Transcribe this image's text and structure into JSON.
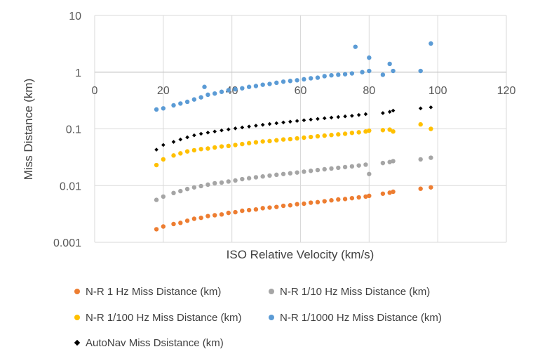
{
  "chart_data": {
    "type": "scatter",
    "title": "",
    "xlabel": "ISO Relative Velocity (km/s)",
    "ylabel": "Miss Distance (km)",
    "xlim": [
      0,
      120
    ],
    "ylim": [
      0.001,
      10
    ],
    "yscale": "log",
    "x_ticks": [
      "0",
      "20",
      "40",
      "60",
      "80",
      "100",
      "120"
    ],
    "y_ticks": [
      "0.001",
      "0.01",
      "0.1",
      "1",
      "10"
    ],
    "grid": true,
    "legend_position": "bottom",
    "series": [
      {
        "name": "N-R 1 Hz Miss Distance (km)",
        "color": "#ED7D31",
        "marker": "circle",
        "x": [
          18,
          20,
          23,
          25,
          27,
          29,
          31,
          33,
          35,
          37,
          39,
          41,
          43,
          45,
          47,
          49,
          51,
          53,
          55,
          57,
          59,
          61,
          63,
          65,
          67,
          69,
          71,
          73,
          75,
          77,
          79,
          80,
          84,
          86,
          87,
          95,
          98
        ],
        "y": [
          0.0017,
          0.0019,
          0.0021,
          0.0022,
          0.0024,
          0.0026,
          0.0027,
          0.0029,
          0.003,
          0.0031,
          0.0033,
          0.0034,
          0.0036,
          0.0037,
          0.0038,
          0.004,
          0.0041,
          0.0042,
          0.0044,
          0.0045,
          0.0047,
          0.0048,
          0.005,
          0.0051,
          0.0053,
          0.0055,
          0.0057,
          0.0058,
          0.006,
          0.0062,
          0.0064,
          0.0066,
          0.0072,
          0.0075,
          0.0078,
          0.0088,
          0.0093
        ]
      },
      {
        "name": "N-R 1/10 Hz Miss Distance (km)",
        "color": "#A5A5A5",
        "marker": "circle",
        "x": [
          18,
          20,
          23,
          25,
          27,
          29,
          31,
          33,
          35,
          37,
          39,
          41,
          43,
          45,
          47,
          49,
          51,
          53,
          55,
          57,
          59,
          61,
          63,
          65,
          67,
          69,
          71,
          73,
          75,
          77,
          79,
          80,
          84,
          86,
          87,
          95,
          98
        ],
        "y": [
          0.0056,
          0.0064,
          0.0074,
          0.008,
          0.0087,
          0.0093,
          0.0098,
          0.0104,
          0.011,
          0.0113,
          0.0118,
          0.0123,
          0.013,
          0.0135,
          0.014,
          0.0145,
          0.015,
          0.0155,
          0.016,
          0.0165,
          0.017,
          0.0176,
          0.0182,
          0.0188,
          0.0194,
          0.02,
          0.0206,
          0.0212,
          0.0218,
          0.0226,
          0.0234,
          0.016,
          0.025,
          0.026,
          0.027,
          0.029,
          0.031
        ]
      },
      {
        "name": "N-R 1/100 Hz Miss Distance (km)",
        "color": "#FFC000",
        "marker": "circle",
        "x": [
          18,
          20,
          23,
          25,
          27,
          29,
          31,
          33,
          35,
          37,
          39,
          41,
          43,
          45,
          47,
          49,
          51,
          53,
          55,
          57,
          59,
          61,
          63,
          65,
          67,
          69,
          71,
          73,
          75,
          77,
          79,
          80,
          84,
          86,
          87,
          95,
          98
        ],
        "y": [
          0.023,
          0.029,
          0.034,
          0.037,
          0.04,
          0.042,
          0.044,
          0.045,
          0.047,
          0.049,
          0.05,
          0.052,
          0.054,
          0.056,
          0.058,
          0.06,
          0.061,
          0.063,
          0.065,
          0.066,
          0.068,
          0.07,
          0.072,
          0.074,
          0.076,
          0.078,
          0.08,
          0.082,
          0.085,
          0.087,
          0.09,
          0.093,
          0.095,
          0.097,
          0.09,
          0.12,
          0.1
        ]
      },
      {
        "name": "N-R 1/1000 Hz Miss Distance (km)",
        "color": "#5B9BD5",
        "marker": "circle",
        "x": [
          18,
          20,
          23,
          25,
          27,
          29,
          31,
          32,
          33,
          35,
          37,
          39,
          41,
          43,
          45,
          47,
          49,
          51,
          53,
          55,
          57,
          59,
          61,
          63,
          65,
          67,
          69,
          71,
          73,
          75,
          76,
          78,
          80,
          80,
          84,
          86,
          87,
          95,
          98
        ],
        "y": [
          0.22,
          0.23,
          0.26,
          0.28,
          0.3,
          0.33,
          0.36,
          0.55,
          0.4,
          0.42,
          0.45,
          0.48,
          0.5,
          0.52,
          0.55,
          0.57,
          0.6,
          0.62,
          0.65,
          0.68,
          0.7,
          0.72,
          0.75,
          0.78,
          0.8,
          0.85,
          0.88,
          0.9,
          0.92,
          0.95,
          2.8,
          1.0,
          1.8,
          1.05,
          0.9,
          1.4,
          1.05,
          1.05,
          3.2
        ]
      },
      {
        "name": "AutoNav Miss Dsistance (km)",
        "color": "#000000",
        "marker": "diamond",
        "x": [
          18,
          20,
          23,
          25,
          27,
          29,
          31,
          33,
          35,
          37,
          39,
          41,
          43,
          45,
          47,
          49,
          51,
          53,
          55,
          57,
          59,
          61,
          63,
          65,
          67,
          69,
          71,
          73,
          75,
          77,
          79,
          84,
          86,
          87,
          95,
          98
        ],
        "y": [
          0.043,
          0.052,
          0.059,
          0.065,
          0.071,
          0.077,
          0.082,
          0.086,
          0.09,
          0.094,
          0.098,
          0.102,
          0.106,
          0.11,
          0.114,
          0.118,
          0.122,
          0.126,
          0.13,
          0.134,
          0.138,
          0.142,
          0.146,
          0.15,
          0.154,
          0.158,
          0.162,
          0.166,
          0.17,
          0.176,
          0.182,
          0.19,
          0.2,
          0.21,
          0.23,
          0.24
        ]
      }
    ]
  }
}
